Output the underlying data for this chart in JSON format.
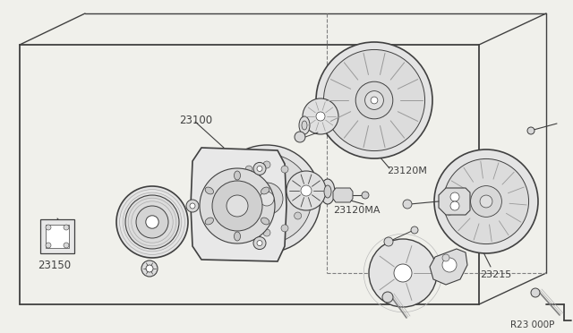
{
  "bg_color": "#f0f0eb",
  "line_color": "#404040",
  "dashed_color": "#808080",
  "text_color": "#404040",
  "ref_code": "R23 000P",
  "fig_width": 6.4,
  "fig_height": 3.72,
  "dpi": 100
}
